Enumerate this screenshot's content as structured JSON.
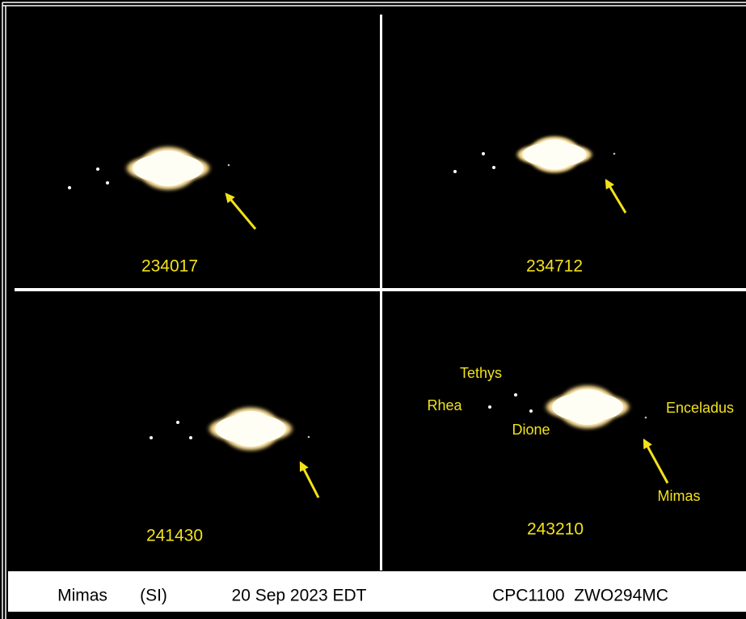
{
  "panels": [
    {
      "label": "234017"
    },
    {
      "label": "234712"
    },
    {
      "label": "241430"
    },
    {
      "label": "243210"
    }
  ],
  "moon_labels": {
    "tethys": "Tethys",
    "rhea": "Rhea",
    "dione": "Dione",
    "enceladus": "Enceladus",
    "mimas": "Mimas"
  },
  "footer": {
    "target": "Mimas",
    "code": "(SI)",
    "date": "20 Sep 2023 EDT",
    "equipment": "CPC1100  ZWO294MC"
  }
}
